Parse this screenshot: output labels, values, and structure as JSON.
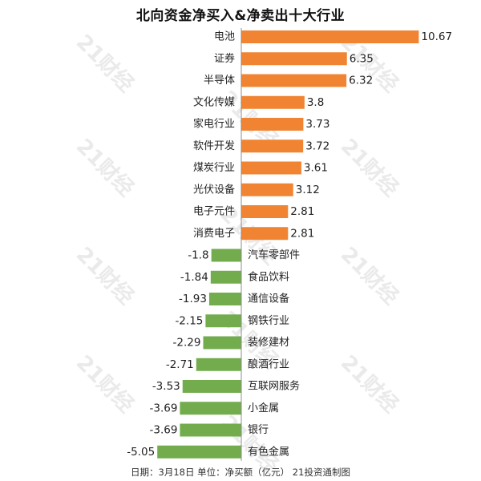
{
  "title": "北向资金净买入&净卖出十大行业",
  "footnote": "日期：3月18日 单位：净买额（亿元） 21投资通制图",
  "watermark": "21财经",
  "colors": {
    "positive": "#f08432",
    "negative": "#72ac4d",
    "axis": "#8c8c8c"
  },
  "chart_data": {
    "type": "bar",
    "orientation": "horizontal",
    "title": "北向资金净买入&净卖出十大行业",
    "categories": [
      "电池",
      "证券",
      "半导体",
      "文化传媒",
      "家电行业",
      "软件开发",
      "煤炭行业",
      "光伏设备",
      "电子元件",
      "消费电子",
      "汽车零部件",
      "食品饮料",
      "通信设备",
      "钢铁行业",
      "装修建材",
      "酿酒行业",
      "互联网服务",
      "小金属",
      "银行",
      "有色金属"
    ],
    "values": [
      10.67,
      6.35,
      6.32,
      3.8,
      3.73,
      3.72,
      3.61,
      3.12,
      2.81,
      2.81,
      -1.8,
      -1.84,
      -1.93,
      -2.15,
      -2.29,
      -2.71,
      -3.53,
      -3.69,
      -3.69,
      -5.05
    ],
    "value_labels": [
      "10.67",
      "6.35",
      "6.32",
      "3.8",
      "3.73",
      "3.72",
      "3.61",
      "3.12",
      "2.81",
      "2.81",
      "-1.8",
      "-1.84",
      "-1.93",
      "-2.15",
      "-2.29",
      "-2.71",
      "-3.53",
      "-3.69",
      "-3.69",
      "-5.05"
    ],
    "unit": "亿元",
    "grid": false,
    "legend": "none"
  }
}
